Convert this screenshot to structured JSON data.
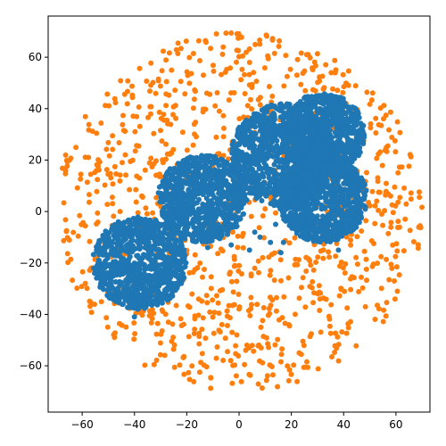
{
  "chart_data": {
    "type": "scatter",
    "title": "",
    "xlabel": "",
    "ylabel": "",
    "xlim": [
      -73,
      73
    ],
    "ylim": [
      -78,
      76
    ],
    "xticks": [
      -60,
      -40,
      -20,
      0,
      20,
      40,
      60
    ],
    "yticks": [
      -60,
      -40,
      -20,
      0,
      20,
      40,
      60
    ],
    "xtick_labels": [
      "−60",
      "−40",
      "−20",
      "0",
      "20",
      "40",
      "60"
    ],
    "ytick_labels": [
      "−60",
      "−40",
      "−20",
      "0",
      "20",
      "40",
      "60"
    ],
    "grid": false,
    "legend": "none",
    "series": [
      {
        "color": "#1f77b4",
        "clusters": [
          {
            "center": [
              -38,
              -20
            ],
            "radius": 18,
            "count": 900
          },
          {
            "center": [
              -14,
              5
            ],
            "radius": 17,
            "count": 900
          },
          {
            "center": [
              17,
              22
            ],
            "radius": 20,
            "count": 1100
          },
          {
            "center": [
              32,
              30
            ],
            "radius": 16,
            "count": 800
          },
          {
            "center": [
              32,
              5
            ],
            "radius": 17,
            "count": 900
          }
        ],
        "scattered_points": [
          [
            -2,
            20
          ],
          [
            12,
            -12
          ],
          [
            8,
            -10
          ],
          [
            17,
            -12
          ],
          [
            14,
            -5
          ],
          [
            -40,
            -41
          ],
          [
            16,
            -16
          ],
          [
            4,
            -15
          ],
          [
            29,
            2
          ],
          [
            -12,
            -14
          ],
          [
            38,
            -15
          ],
          [
            6,
            -8
          ],
          [
            -3,
            -13
          ]
        ]
      },
      {
        "color": "#ff7f0e",
        "distribution": "uniform-disk",
        "center": [
          0,
          0
        ],
        "radius": 70,
        "count": 1100
      }
    ]
  }
}
